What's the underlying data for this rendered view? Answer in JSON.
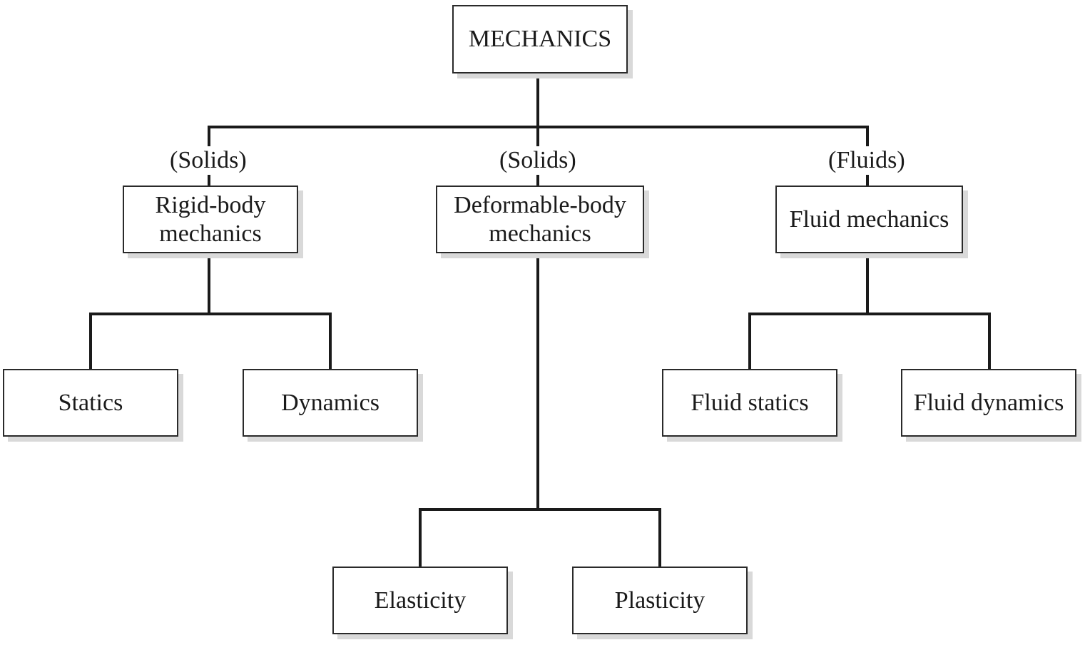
{
  "diagram": {
    "root": {
      "label": "MECHANICS"
    },
    "branches": [
      {
        "tag": "(Solids)",
        "label_lines": [
          "Rigid-body",
          "mechanics"
        ],
        "children": [
          "Statics",
          "Dynamics"
        ]
      },
      {
        "tag": "(Solids)",
        "label_lines": [
          "Deformable-body",
          "mechanics"
        ],
        "children": [
          "Elasticity",
          "Plasticity"
        ]
      },
      {
        "tag": "(Fluids)",
        "label_lines": [
          "Fluid mechanics"
        ],
        "children": [
          "Fluid statics",
          "Fluid dynamics"
        ]
      }
    ],
    "colors": {
      "line": "#1a1a1a",
      "box_border": "#2a2a2a",
      "shadow": "#d9d9d9"
    }
  }
}
